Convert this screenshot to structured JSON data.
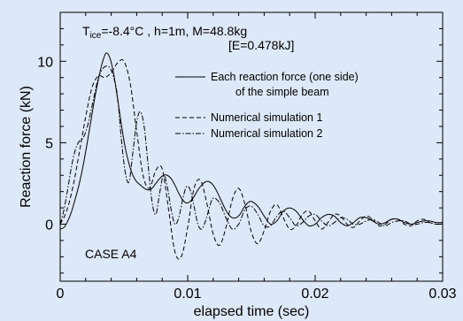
{
  "chart_data": {
    "type": "line",
    "xlabel": "elapsed time (sec)",
    "ylabel": "Reaction force (kN)",
    "xlim": [
      0,
      0.03
    ],
    "ylim": [
      -3.5,
      13
    ],
    "xticks": [
      0,
      0.01,
      0.02,
      0.03
    ],
    "xtick_labels": [
      "0",
      "0.01",
      "0.02",
      "0.03"
    ],
    "yticks": [
      0,
      5,
      10
    ],
    "ytick_labels": [
      "0",
      "5",
      "10"
    ],
    "grid": false,
    "legend_position": "top-right",
    "header": {
      "line1_t": "T",
      "line1_sub": "ice",
      "line1_rest": "=-8.4°C , h=1m, M=48.8kg",
      "line2": "[E=0.478kJ]"
    },
    "annotation": "CASE A4",
    "series": [
      {
        "name": "Each reaction force (one side)",
        "name_line2": "of the simple beam",
        "style": "solid",
        "color": "#000000",
        "x": [
          0,
          0.0003,
          0.0006,
          0.0009,
          0.0012,
          0.0015,
          0.0018,
          0.0021,
          0.0024,
          0.0027,
          0.003,
          0.0033,
          0.0036,
          0.0039,
          0.0042,
          0.0045,
          0.0048,
          0.0051,
          0.0054,
          0.0057,
          0.006,
          0.0063,
          0.0066,
          0.0069,
          0.0072,
          0.0075,
          0.0078,
          0.0081,
          0.0084,
          0.0087,
          0.009,
          0.0093,
          0.0096,
          0.0099,
          0.0102,
          0.0105,
          0.0108,
          0.0111,
          0.0114,
          0.0117,
          0.012,
          0.0123,
          0.0126,
          0.0129,
          0.0132,
          0.0135,
          0.0138,
          0.0141,
          0.0144,
          0.0147,
          0.015,
          0.0155,
          0.016,
          0.0165,
          0.017,
          0.0175,
          0.018,
          0.0185,
          0.019,
          0.0195,
          0.02,
          0.0205,
          0.021,
          0.0215,
          0.022,
          0.0225,
          0.023,
          0.0235,
          0.024,
          0.0245,
          0.025,
          0.0255,
          0.026,
          0.0265,
          0.027,
          0.0275,
          0.028,
          0.0285,
          0.029,
          0.0295,
          0.03
        ],
        "y": [
          -0.3,
          -0.2,
          0.2,
          0.8,
          1.6,
          2.5,
          3.6,
          4.9,
          6.3,
          7.7,
          8.9,
          9.9,
          10.5,
          10.2,
          9.2,
          7.7,
          6.1,
          4.7,
          3.7,
          3.0,
          2.6,
          2.4,
          2.2,
          2.1,
          2.2,
          2.5,
          2.8,
          3.0,
          3.0,
          2.8,
          2.4,
          1.9,
          1.5,
          1.3,
          1.4,
          1.7,
          2.1,
          2.4,
          2.6,
          2.6,
          2.4,
          2.0,
          1.5,
          1.0,
          0.6,
          0.4,
          0.4,
          0.6,
          1.0,
          1.3,
          1.4,
          1.1,
          0.5,
          0.0,
          0.2,
          0.8,
          1.0,
          0.8,
          0.3,
          -0.1,
          0.0,
          0.4,
          0.6,
          0.5,
          0.1,
          -0.1,
          0.1,
          0.4,
          0.4,
          0.2,
          0.0,
          0.1,
          0.3,
          0.3,
          0.1,
          0.0,
          0.1,
          0.2,
          0.2,
          0.1,
          0.1
        ]
      },
      {
        "name": "Numerical simulation 1",
        "style": "dashed",
        "color": "#000000",
        "x": [
          0,
          0.0005,
          0.001,
          0.0015,
          0.002,
          0.0025,
          0.003,
          0.0035,
          0.004,
          0.0045,
          0.005,
          0.0055,
          0.006,
          0.0065,
          0.007,
          0.0075,
          0.008,
          0.0085,
          0.009,
          0.0095,
          0.01,
          0.0105,
          0.011,
          0.0115,
          0.012,
          0.0125,
          0.013,
          0.0135,
          0.014,
          0.0145,
          0.015,
          0.0155,
          0.016,
          0.0165,
          0.017,
          0.0175,
          0.018,
          0.0185,
          0.019,
          0.0195,
          0.02,
          0.0205,
          0.021,
          0.0215,
          0.022,
          0.0225,
          0.023,
          0.0235,
          0.024,
          0.0245,
          0.025,
          0.0255,
          0.026,
          0.0265,
          0.027,
          0.0275,
          0.028,
          0.0285,
          0.029,
          0.0295,
          0.03
        ],
        "y": [
          0.0,
          0.8,
          2.3,
          4.4,
          6.6,
          8.4,
          9.1,
          9.0,
          9.3,
          9.9,
          10.0,
          8.6,
          5.7,
          3.0,
          2.2,
          3.3,
          3.4,
          0.9,
          -1.7,
          -2.0,
          -0.2,
          2.2,
          2.7,
          1.3,
          -0.6,
          -1.3,
          -0.2,
          1.5,
          2.2,
          1.2,
          -0.5,
          -1.2,
          -0.4,
          0.8,
          1.2,
          0.4,
          -0.3,
          -0.1,
          0.6,
          0.8,
          0.2,
          -0.3,
          0.1,
          0.6,
          0.5,
          0.0,
          -0.2,
          0.2,
          0.5,
          0.3,
          -0.1,
          0.0,
          0.3,
          0.3,
          0.0,
          -0.1,
          0.2,
          0.3,
          0.1,
          0.0,
          0.1
        ]
      },
      {
        "name": "Numerical simulation 2",
        "style": "dashdot",
        "color": "#000000",
        "x": [
          0,
          0.0003,
          0.0006,
          0.0009,
          0.0012,
          0.0015,
          0.0018,
          0.0021,
          0.0024,
          0.0027,
          0.003,
          0.0033,
          0.0036,
          0.0039,
          0.0042,
          0.0045,
          0.0048,
          0.0051,
          0.0054,
          0.0057,
          0.006,
          0.0063,
          0.0066,
          0.0069,
          0.0072,
          0.0075,
          0.0078,
          0.0081,
          0.0084,
          0.0087,
          0.009,
          0.0093,
          0.0096,
          0.0099,
          0.0102,
          0.0105,
          0.0108,
          0.0111,
          0.0114,
          0.0117,
          0.012,
          0.0125,
          0.013,
          0.0135,
          0.014,
          0.0145,
          0.015,
          0.0155,
          0.016,
          0.0165,
          0.017,
          0.0175,
          0.018,
          0.0185,
          0.019,
          0.0195,
          0.02,
          0.0205,
          0.021,
          0.0215,
          0.022,
          0.0225,
          0.023,
          0.0235,
          0.024,
          0.0245,
          0.025,
          0.0255,
          0.026,
          0.0265,
          0.027,
          0.0275,
          0.028,
          0.0285,
          0.029,
          0.0295,
          0.03
        ],
        "y": [
          0.0,
          0.9,
          2.2,
          3.6,
          4.6,
          5.1,
          5.3,
          5.9,
          6.9,
          8.0,
          9.0,
          9.5,
          9.7,
          9.6,
          9.0,
          7.8,
          5.2,
          3.2,
          2.6,
          4.4,
          6.3,
          6.9,
          5.9,
          3.6,
          1.4,
          0.6,
          1.9,
          3.0,
          2.3,
          0.9,
          0.0,
          0.4,
          1.5,
          2.3,
          2.1,
          1.1,
          0.0,
          -0.3,
          0.2,
          1.0,
          1.6,
          1.3,
          0.4,
          -0.3,
          0.0,
          0.9,
          1.1,
          0.6,
          -0.1,
          -0.1,
          0.5,
          0.8,
          0.4,
          -0.1,
          0.1,
          0.5,
          0.6,
          0.2,
          -0.1,
          0.1,
          0.4,
          0.3,
          0.0,
          0.0,
          0.2,
          0.3,
          0.1,
          -0.1,
          0.1,
          0.2,
          0.2,
          0.0,
          0.0,
          0.1,
          0.1,
          0.0,
          0.0
        ]
      }
    ]
  }
}
